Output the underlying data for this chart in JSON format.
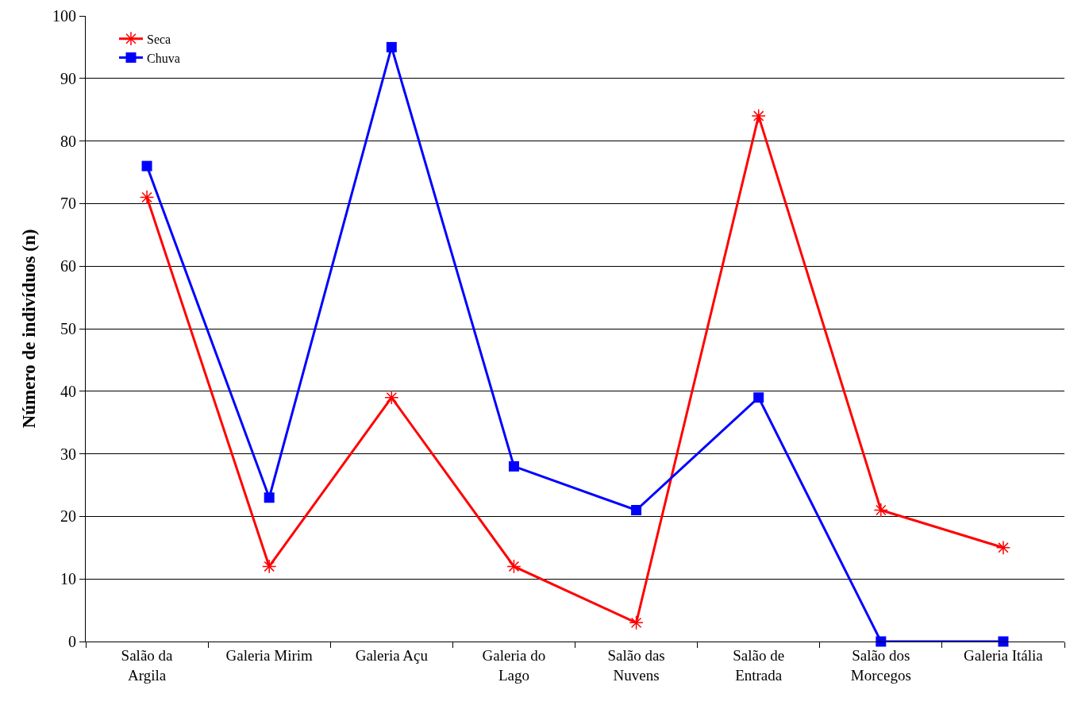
{
  "chart_data": {
    "type": "line",
    "ylabel": "Número de indivíduos (n)",
    "categories": [
      "Salão da Argila",
      "Galeria Mirim",
      "Galeria Açu",
      "Galeria do Lago",
      "Salão das Nuvens",
      "Salão de Entrada",
      "Salão dos Morcegos",
      "Galeria Itália"
    ],
    "series": [
      {
        "name": "Seca",
        "color": "#ff0000",
        "marker": "cross",
        "values": [
          71,
          12,
          39,
          12,
          3,
          84,
          21,
          15
        ]
      },
      {
        "name": "Chuva",
        "color": "#0000ff",
        "marker": "square",
        "values": [
          76,
          23,
          95,
          28,
          21,
          39,
          0,
          0
        ]
      }
    ],
    "ylim": [
      0,
      100
    ],
    "yticks": [
      0,
      10,
      20,
      30,
      40,
      50,
      60,
      70,
      80,
      90,
      100
    ],
    "grid": "y",
    "legend": "top left",
    "line_style": "solid"
  }
}
